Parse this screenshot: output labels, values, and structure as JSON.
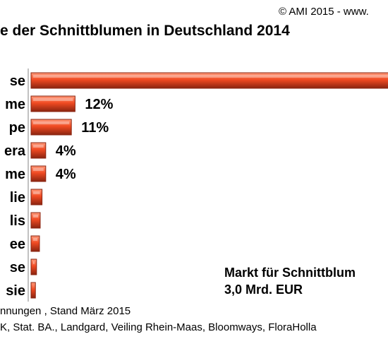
{
  "header": {
    "copyright": "© AMI 2015 - www.",
    "title": "e der Schnittblumen in Deutschland 2014"
  },
  "note": {
    "line1": "Markt für Schnittblum",
    "line2": "3,0 Mrd. EUR"
  },
  "footer": {
    "line1": "nnungen , Stand März 2015",
    "line2": "K,  Stat. BA., Landgard, Veiling Rhein-Maas, Bloomways, FloraHolla"
  },
  "colors": {
    "bar": "#f04a22",
    "bar_dark": "#8a2410",
    "bar_light": "#ff9a7a"
  },
  "chart_data": {
    "type": "bar",
    "orientation": "horizontal",
    "categories": [
      "se",
      "me",
      "pe",
      "era",
      "me",
      "lie",
      "lis",
      "ee",
      "se",
      "sie"
    ],
    "values": [
      99,
      12,
      11,
      4,
      4,
      3,
      2.5,
      2.3,
      1.5,
      1.2
    ],
    "data_labels": [
      "",
      "12%",
      "11%",
      "4%",
      "4%",
      "",
      "",
      "",
      "",
      ""
    ],
    "xlim": [
      0,
      100
    ],
    "grid": false
  }
}
